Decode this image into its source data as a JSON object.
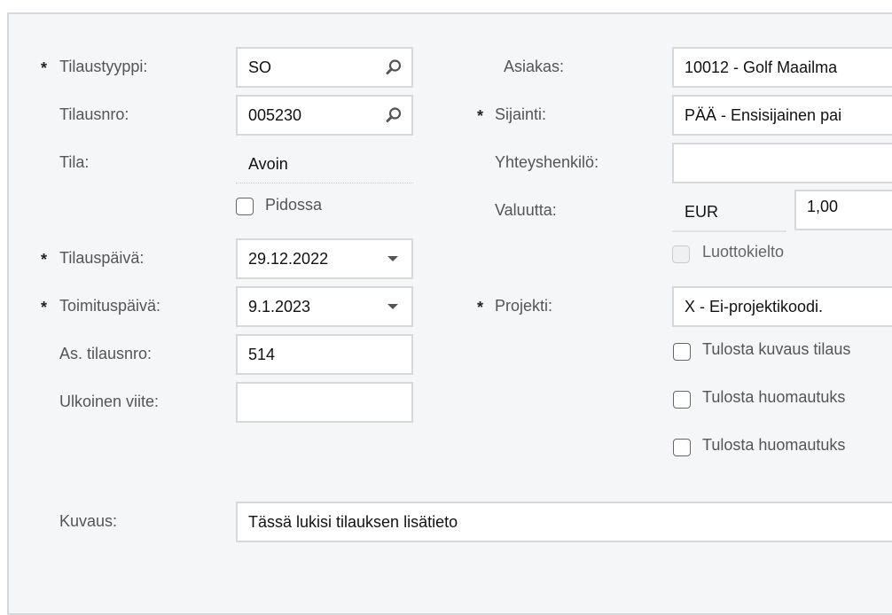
{
  "left": {
    "order_type": {
      "label": "Tilaustyyppi:",
      "value": "SO",
      "required": true
    },
    "order_nbr": {
      "label": "Tilausnro:",
      "value": "005230"
    },
    "status": {
      "label": "Tila:",
      "value": "Avoin"
    },
    "hold": {
      "label": "Pidossa",
      "checked": false
    },
    "order_date": {
      "label": "Tilauspäivä:",
      "value": "29.12.2022",
      "required": true
    },
    "delivery_date": {
      "label": "Toimituspäivä:",
      "value": "9.1.2023",
      "required": true
    },
    "customer_order": {
      "label": "As. tilausnro:",
      "value": "514"
    },
    "external_ref": {
      "label": "Ulkoinen viite:",
      "value": ""
    }
  },
  "right": {
    "customer": {
      "label": "Asiakas:",
      "value": "10012 - Golf Maailma"
    },
    "location": {
      "label": "Sijainti:",
      "value": "PÄÄ - Ensisijainen pai",
      "required": true
    },
    "contact": {
      "label": "Yhteyshenkilö:",
      "value": ""
    },
    "currency": {
      "label": "Valuutta:",
      "value": "EUR",
      "rate": "1,00"
    },
    "credit_hold": {
      "label": "Luottokielto",
      "checked": false,
      "disabled": true
    },
    "project": {
      "label": "Projekti:",
      "value": "X - Ei-projektikoodi.",
      "required": true
    },
    "checkboxes": [
      {
        "label": "Tulosta kuvaus tilaus",
        "checked": false
      },
      {
        "label": "Tulosta huomautuks",
        "checked": false
      },
      {
        "label": "Tulosta huomautuks",
        "checked": false
      }
    ]
  },
  "description": {
    "label": "Kuvaus:",
    "value": "Tässä lukisi tilauksen lisätieto"
  },
  "required_mark": "*",
  "icons": {
    "lookup": "magnifier-icon",
    "dropdown": "caret-down-icon"
  }
}
